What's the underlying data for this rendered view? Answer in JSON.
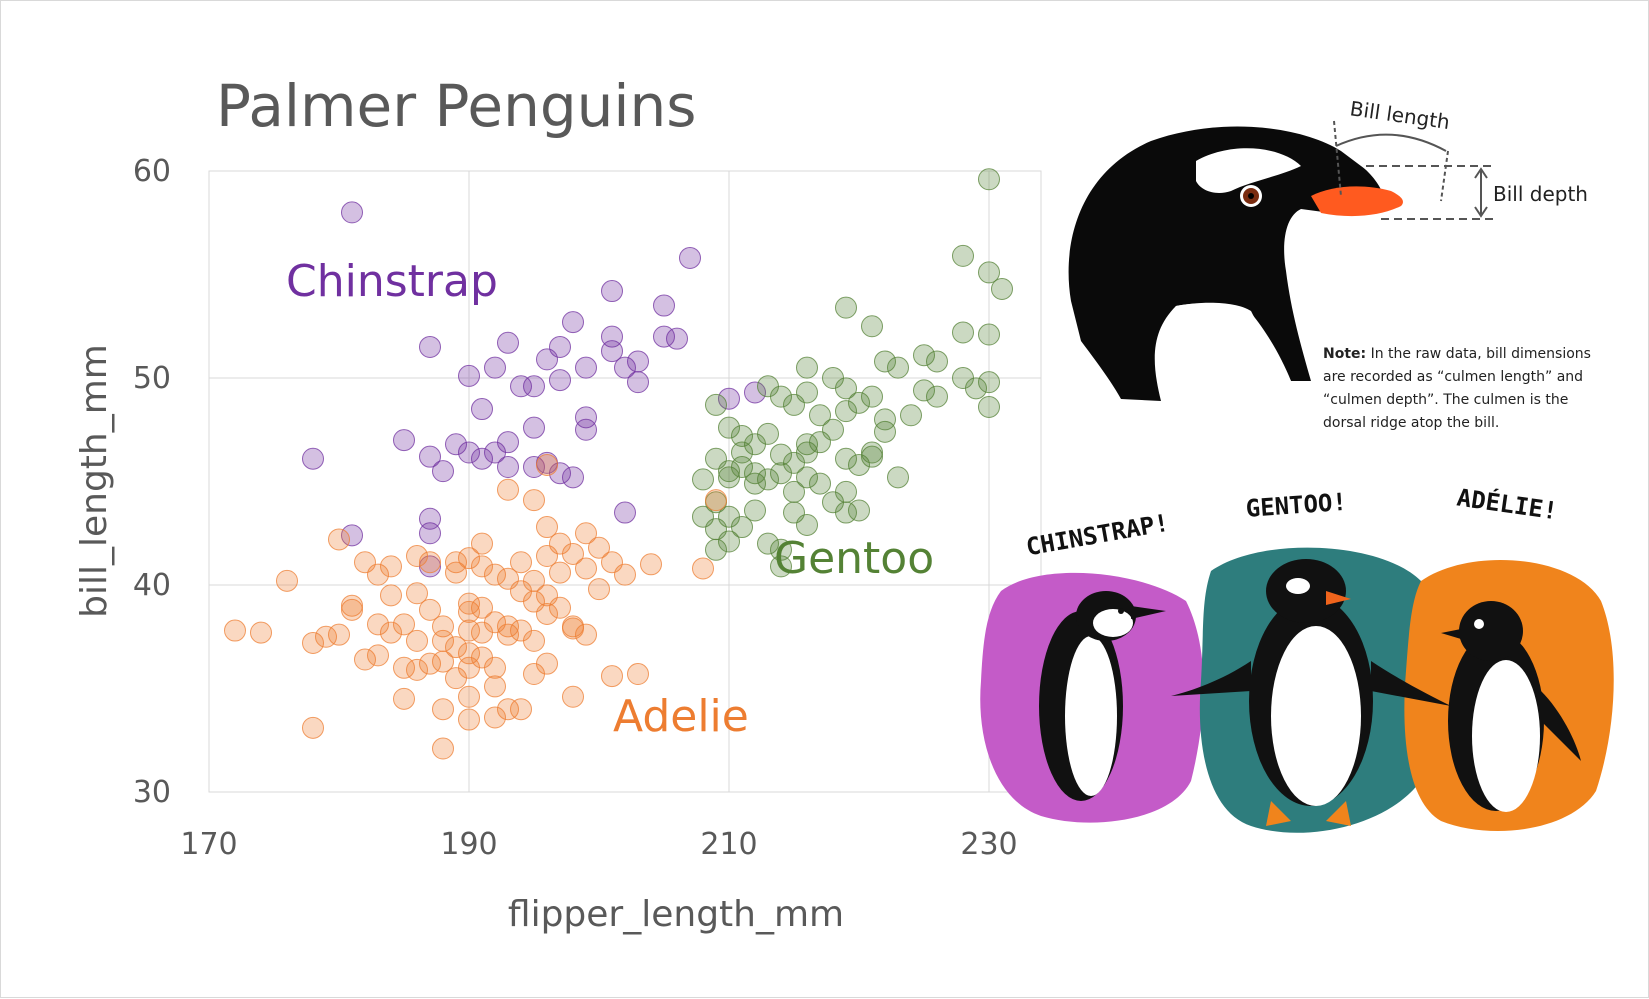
{
  "chart_data": {
    "type": "scatter",
    "title": "Palmer Penguins",
    "xlabel": "flipper_length_mm",
    "ylabel": "bill_length_mm",
    "xlim": [
      170,
      234
    ],
    "ylim": [
      30,
      60
    ],
    "xticks": [
      170,
      190,
      210,
      230
    ],
    "yticks": [
      30,
      40,
      50,
      60
    ],
    "grid": true,
    "series": [
      {
        "name": "Chinstrap",
        "color": "#7030a0",
        "points": [
          [
            181,
            58.0
          ],
          [
            207,
            55.8
          ],
          [
            201,
            54.2
          ],
          [
            205,
            53.5
          ],
          [
            198,
            52.7
          ],
          [
            193,
            51.7
          ],
          [
            201,
            52.0
          ],
          [
            205,
            52.0
          ],
          [
            187,
            51.5
          ],
          [
            197,
            51.5
          ],
          [
            201,
            51.3
          ],
          [
            196,
            50.9
          ],
          [
            199,
            50.5
          ],
          [
            202,
            50.5
          ],
          [
            203,
            50.8
          ],
          [
            206,
            51.9
          ],
          [
            192,
            50.5
          ],
          [
            194,
            49.6
          ],
          [
            190,
            50.1
          ],
          [
            195,
            49.6
          ],
          [
            197,
            49.9
          ],
          [
            203,
            49.8
          ],
          [
            191,
            48.5
          ],
          [
            199,
            48.1
          ],
          [
            199,
            47.5
          ],
          [
            195,
            47.6
          ],
          [
            185,
            47.0
          ],
          [
            189,
            46.8
          ],
          [
            193,
            46.9
          ],
          [
            190,
            46.4
          ],
          [
            191,
            46.1
          ],
          [
            192,
            46.4
          ],
          [
            188,
            45.5
          ],
          [
            193,
            45.7
          ],
          [
            195,
            45.7
          ],
          [
            197,
            45.4
          ],
          [
            198,
            45.2
          ],
          [
            187,
            46.2
          ],
          [
            178,
            46.1
          ],
          [
            181,
            42.4
          ],
          [
            187,
            43.2
          ],
          [
            187,
            42.5
          ],
          [
            187,
            40.9
          ],
          [
            210,
            49.0
          ],
          [
            212,
            49.3
          ],
          [
            202,
            43.5
          ],
          [
            196,
            45.9
          ]
        ]
      },
      {
        "name": "Gentoo",
        "color": "#548235",
        "points": [
          [
            230,
            59.6
          ],
          [
            228,
            55.9
          ],
          [
            230,
            55.1
          ],
          [
            231,
            54.3
          ],
          [
            219,
            53.4
          ],
          [
            221,
            52.5
          ],
          [
            228,
            52.2
          ],
          [
            230,
            52.1
          ],
          [
            222,
            50.8
          ],
          [
            223,
            50.5
          ],
          [
            225,
            51.1
          ],
          [
            226,
            50.8
          ],
          [
            228,
            50.0
          ],
          [
            229,
            49.5
          ],
          [
            230,
            49.8
          ],
          [
            230,
            48.6
          ],
          [
            216,
            50.5
          ],
          [
            218,
            50.0
          ],
          [
            219,
            49.5
          ],
          [
            213,
            49.6
          ],
          [
            214,
            49.1
          ],
          [
            215,
            48.7
          ],
          [
            216,
            49.3
          ],
          [
            217,
            48.2
          ],
          [
            220,
            48.8
          ],
          [
            221,
            49.1
          ],
          [
            222,
            48.0
          ],
          [
            224,
            48.2
          ],
          [
            225,
            49.4
          ],
          [
            226,
            49.1
          ],
          [
            209,
            48.7
          ],
          [
            210,
            47.6
          ],
          [
            211,
            47.2
          ],
          [
            212,
            46.8
          ],
          [
            213,
            47.3
          ],
          [
            214,
            46.3
          ],
          [
            215,
            45.9
          ],
          [
            216,
            46.4
          ],
          [
            217,
            46.9
          ],
          [
            218,
            47.5
          ],
          [
            219,
            46.1
          ],
          [
            220,
            45.8
          ],
          [
            221,
            46.2
          ],
          [
            209,
            46.1
          ],
          [
            210,
            45.5
          ],
          [
            211,
            45.7
          ],
          [
            212,
            44.9
          ],
          [
            213,
            45.1
          ],
          [
            214,
            45.4
          ],
          [
            215,
            44.5
          ],
          [
            216,
            45.2
          ],
          [
            217,
            44.9
          ],
          [
            218,
            44.0
          ],
          [
            219,
            44.5
          ],
          [
            223,
            45.2
          ],
          [
            208,
            45.1
          ],
          [
            209,
            44.0
          ],
          [
            210,
            43.3
          ],
          [
            211,
            42.8
          ],
          [
            212,
            43.6
          ],
          [
            213,
            42.0
          ],
          [
            214,
            41.7
          ],
          [
            208,
            43.3
          ],
          [
            209,
            41.7
          ],
          [
            210,
            42.1
          ],
          [
            215,
            43.5
          ],
          [
            216,
            42.9
          ],
          [
            219,
            43.5
          ],
          [
            220,
            43.6
          ],
          [
            214,
            40.9
          ],
          [
            209,
            42.7
          ],
          [
            210,
            45.2
          ],
          [
            211,
            46.4
          ],
          [
            212,
            45.4
          ],
          [
            216,
            46.8
          ],
          [
            219,
            48.4
          ],
          [
            221,
            46.4
          ],
          [
            222,
            47.4
          ]
        ]
      },
      {
        "name": "Adelie",
        "color": "#ed7d31",
        "points": [
          [
            172,
            37.8
          ],
          [
            174,
            37.7
          ],
          [
            176,
            40.2
          ],
          [
            178,
            37.2
          ],
          [
            178,
            33.1
          ],
          [
            179,
            37.5
          ],
          [
            180,
            37.6
          ],
          [
            180,
            42.2
          ],
          [
            181,
            38.8
          ],
          [
            181,
            39.0
          ],
          [
            182,
            41.1
          ],
          [
            182,
            36.4
          ],
          [
            183,
            40.5
          ],
          [
            183,
            36.6
          ],
          [
            184,
            37.7
          ],
          [
            184,
            39.5
          ],
          [
            185,
            38.1
          ],
          [
            185,
            36.0
          ],
          [
            185,
            34.5
          ],
          [
            186,
            39.6
          ],
          [
            186,
            37.3
          ],
          [
            186,
            35.9
          ],
          [
            187,
            36.2
          ],
          [
            187,
            38.8
          ],
          [
            187,
            41.1
          ],
          [
            188,
            38.0
          ],
          [
            188,
            36.3
          ],
          [
            188,
            34.0
          ],
          [
            188,
            32.1
          ],
          [
            189,
            40.6
          ],
          [
            189,
            37.0
          ],
          [
            189,
            35.5
          ],
          [
            190,
            39.1
          ],
          [
            190,
            38.7
          ],
          [
            190,
            37.8
          ],
          [
            190,
            36.0
          ],
          [
            190,
            34.6
          ],
          [
            190,
            33.5
          ],
          [
            191,
            40.9
          ],
          [
            191,
            38.9
          ],
          [
            191,
            37.7
          ],
          [
            191,
            36.5
          ],
          [
            192,
            40.5
          ],
          [
            192,
            38.2
          ],
          [
            192,
            36.0
          ],
          [
            192,
            35.1
          ],
          [
            193,
            40.3
          ],
          [
            193,
            38.0
          ],
          [
            193,
            37.6
          ],
          [
            193,
            34.0
          ],
          [
            194,
            41.1
          ],
          [
            194,
            39.7
          ],
          [
            194,
            37.8
          ],
          [
            195,
            40.2
          ],
          [
            195,
            39.2
          ],
          [
            195,
            37.3
          ],
          [
            195,
            35.7
          ],
          [
            196,
            42.8
          ],
          [
            196,
            41.4
          ],
          [
            196,
            39.5
          ],
          [
            196,
            38.6
          ],
          [
            197,
            42.0
          ],
          [
            197,
            40.6
          ],
          [
            197,
            38.9
          ],
          [
            198,
            41.5
          ],
          [
            198,
            37.9
          ],
          [
            198,
            34.6
          ],
          [
            199,
            42.5
          ],
          [
            199,
            40.8
          ],
          [
            199,
            37.6
          ],
          [
            200,
            41.8
          ],
          [
            200,
            39.8
          ],
          [
            201,
            41.1
          ],
          [
            202,
            40.5
          ],
          [
            203,
            35.7
          ],
          [
            204,
            41.0
          ],
          [
            208,
            40.8
          ],
          [
            209,
            44.1
          ],
          [
            195,
            44.1
          ],
          [
            196,
            45.8
          ],
          [
            193,
            44.6
          ],
          [
            191,
            42.0
          ],
          [
            190,
            41.3
          ],
          [
            189,
            41.1
          ],
          [
            186,
            41.4
          ],
          [
            184,
            40.9
          ],
          [
            183,
            38.1
          ],
          [
            188,
            37.3
          ],
          [
            190,
            36.7
          ],
          [
            192,
            33.6
          ],
          [
            194,
            34.0
          ],
          [
            196,
            36.2
          ],
          [
            198,
            38.0
          ],
          [
            201,
            35.6
          ]
        ]
      }
    ],
    "annotations": [
      "Chinstrap",
      "Gentoo",
      "Adelie"
    ]
  },
  "diagram": {
    "bill_length_label": "Bill length",
    "bill_depth_label": "Bill depth",
    "note_bold": "Note:",
    "note_lines": [
      "In the raw data, bill dimensions",
      "are recorded as “culmen length” and",
      "“culmen depth”. The culmen is the",
      "dorsal ridge atop the bill."
    ]
  },
  "cartoon": {
    "labels": [
      "CHINSTRAP!",
      "GENTOO!",
      "ADÉLIE!"
    ],
    "colors": {
      "chinstrap": "#c45bc8",
      "gentoo": "#2e7d7d",
      "adelie": "#f0841c"
    }
  }
}
